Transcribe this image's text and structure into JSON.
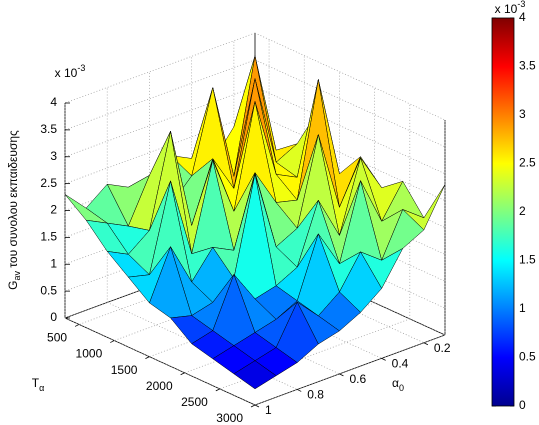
{
  "chart_data": {
    "type": "surface",
    "z_label": {
      "main": "G",
      "sub": "av",
      "rest": " του συνολου εκπαιδευσης"
    },
    "x_label": {
      "main": "α",
      "sub": "0"
    },
    "y_label": {
      "main": "T",
      "sub": "α"
    },
    "exponent": {
      "base": "x 10",
      "power": "-3"
    },
    "x": [
      0.1,
      0.2,
      0.3,
      0.4,
      0.5,
      0.6,
      0.7,
      0.8,
      0.9,
      1.0
    ],
    "y": [
      300,
      600,
      900,
      1200,
      1500,
      1800,
      2100,
      2400,
      2700,
      3000
    ],
    "z": [
      [
        2.2,
        2.4,
        1.9,
        2.1,
        2.3,
        1.8,
        2.0,
        2.2,
        1.9,
        2.3
      ],
      [
        2.0,
        3.9,
        1.8,
        3.6,
        2.1,
        1.7,
        2.4,
        1.6,
        1.8,
        2.0
      ],
      [
        2.3,
        2.1,
        3.8,
        1.9,
        2.6,
        1.5,
        3.4,
        1.7,
        1.4,
        1.6
      ],
      [
        3.1,
        2.0,
        2.2,
        3.7,
        1.8,
        2.9,
        1.3,
        2.8,
        1.2,
        1.3
      ],
      [
        2.1,
        4.0,
        1.9,
        2.0,
        2.7,
        1.4,
        1.6,
        1.1,
        1.9,
        1.0
      ],
      [
        2.6,
        1.8,
        3.3,
        1.7,
        1.5,
        3.0,
        1.2,
        0.9,
        0.8,
        0.9
      ],
      [
        2.2,
        2.9,
        1.6,
        2.4,
        1.3,
        1.1,
        1.0,
        1.6,
        0.7,
        0.6
      ],
      [
        2.5,
        1.9,
        2.8,
        1.4,
        2.1,
        1.0,
        0.8,
        0.7,
        0.6,
        0.5
      ],
      [
        2.0,
        2.3,
        1.5,
        1.8,
        1.2,
        0.9,
        1.3,
        0.6,
        0.5,
        0.4
      ],
      [
        2.8,
        2.1,
        1.9,
        1.3,
        1.0,
        0.8,
        0.7,
        0.5,
        0.4,
        0.3
      ]
    ],
    "xlim": [
      0.1,
      1
    ],
    "xticks": [
      0.2,
      0.4,
      0.6,
      0.8,
      1
    ],
    "ylim": [
      300,
      3000
    ],
    "yticks": [
      500,
      1000,
      1500,
      2000,
      2500,
      3000
    ],
    "zlim": [
      0,
      4
    ],
    "zticks": [
      0,
      0.5,
      1,
      1.5,
      2,
      2.5,
      3,
      3.5,
      4
    ],
    "grid": true,
    "colormap": "jet",
    "colorbar": true
  }
}
